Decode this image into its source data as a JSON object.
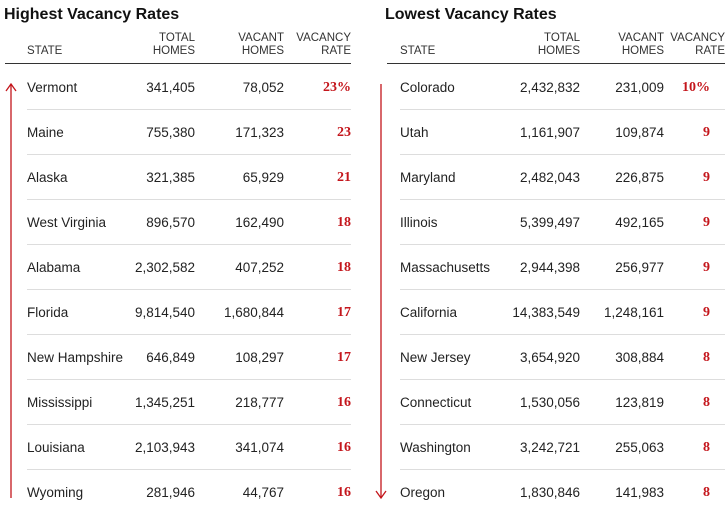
{
  "colors": {
    "accent": "#c4161c",
    "rule": "#333333",
    "separator": "#dddddd"
  },
  "columns": {
    "state": "STATE",
    "total": [
      "TOTAL",
      "HOMES"
    ],
    "vacant": [
      "VACANT",
      "HOMES"
    ],
    "rate": [
      "VACANCY",
      "RATE"
    ]
  },
  "chart_data": [
    {
      "type": "table",
      "title": "Highest Vacancy Rates",
      "rows": [
        {
          "state": "Vermont",
          "total": "341,405",
          "vacant": "78,052",
          "rate": "23%"
        },
        {
          "state": "Maine",
          "total": "755,380",
          "vacant": "171,323",
          "rate": "23"
        },
        {
          "state": "Alaska",
          "total": "321,385",
          "vacant": "65,929",
          "rate": "21"
        },
        {
          "state": "West Virginia",
          "total": "896,570",
          "vacant": "162,490",
          "rate": "18"
        },
        {
          "state": "Alabama",
          "total": "2,302,582",
          "vacant": "407,252",
          "rate": "18"
        },
        {
          "state": "Florida",
          "total": "9,814,540",
          "vacant": "1,680,844",
          "rate": "17"
        },
        {
          "state": "New Hampshire",
          "total": "646,849",
          "vacant": "108,297",
          "rate": "17"
        },
        {
          "state": "Mississippi",
          "total": "1,345,251",
          "vacant": "218,777",
          "rate": "16"
        },
        {
          "state": "Louisiana",
          "total": "2,103,943",
          "vacant": "341,074",
          "rate": "16"
        },
        {
          "state": "Wyoming",
          "total": "281,946",
          "vacant": "44,767",
          "rate": "16"
        }
      ]
    },
    {
      "type": "table",
      "title": "Lowest Vacancy Rates",
      "rows": [
        {
          "state": "Colorado",
          "total": "2,432,832",
          "vacant": "231,009",
          "rate": "10%"
        },
        {
          "state": "Utah",
          "total": "1,161,907",
          "vacant": "109,874",
          "rate": "9"
        },
        {
          "state": "Maryland",
          "total": "2,482,043",
          "vacant": "226,875",
          "rate": "9"
        },
        {
          "state": "Illinois",
          "total": "5,399,497",
          "vacant": "492,165",
          "rate": "9"
        },
        {
          "state": "Massachusetts",
          "total": "2,944,398",
          "vacant": "256,977",
          "rate": "9"
        },
        {
          "state": "California",
          "total": "14,383,549",
          "vacant": "1,248,161",
          "rate": "9"
        },
        {
          "state": "New Jersey",
          "total": "3,654,920",
          "vacant": "308,884",
          "rate": "8"
        },
        {
          "state": "Connecticut",
          "total": "1,530,056",
          "vacant": "123,819",
          "rate": "8"
        },
        {
          "state": "Washington",
          "total": "3,242,721",
          "vacant": "255,063",
          "rate": "8"
        },
        {
          "state": "Oregon",
          "total": "1,830,846",
          "vacant": "141,983",
          "rate": "8"
        }
      ]
    }
  ]
}
